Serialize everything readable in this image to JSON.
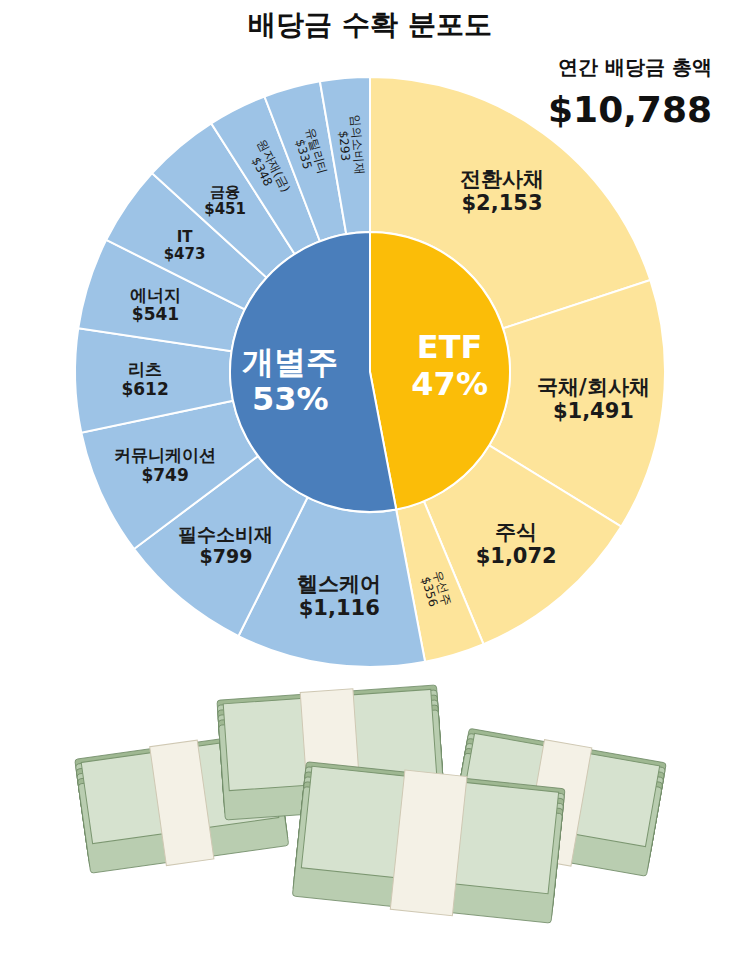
{
  "chart_data": {
    "type": "sunburst",
    "title": "배당금 수확 분포도",
    "total": {
      "label": "연간 배당금 총액",
      "value": 10788,
      "value_label": "$10,788"
    },
    "data_labels": true,
    "series": [
      {
        "name": "ETF",
        "value": 47,
        "value_label": "47%",
        "color": "#fbbd08",
        "categories": [
          "전환사채",
          "국채/회사채",
          "주식",
          "우선주"
        ],
        "values": [
          2153,
          1491,
          1072,
          356
        ],
        "value_labels": [
          "$2,153",
          "$1,491",
          "$1,072",
          "$356"
        ],
        "colors": [
          "#fde49a",
          "#fde49a",
          "#fde49a",
          "#fde49a"
        ]
      },
      {
        "name": "개별주",
        "value": 53,
        "value_label": "53%",
        "color": "#4a7ebb",
        "categories": [
          "헬스케어",
          "필수소비재",
          "커뮤니케이션",
          "리츠",
          "에너지",
          "IT",
          "금융",
          "원자재(금)",
          "유틸리티",
          "임의소비재"
        ],
        "values": [
          1116,
          799,
          749,
          612,
          541,
          473,
          451,
          348,
          335,
          293
        ],
        "value_labels": [
          "$1,116",
          "$799",
          "$749",
          "$612",
          "$541",
          "$473",
          "$451",
          "$348",
          "$335",
          "$293"
        ],
        "colors": [
          "#9dc3e6",
          "#9dc3e6",
          "#9dc3e6",
          "#9dc3e6",
          "#9dc3e6",
          "#9dc3e6",
          "#9dc3e6",
          "#9dc3e6",
          "#9dc3e6",
          "#9dc3e6"
        ]
      }
    ]
  }
}
